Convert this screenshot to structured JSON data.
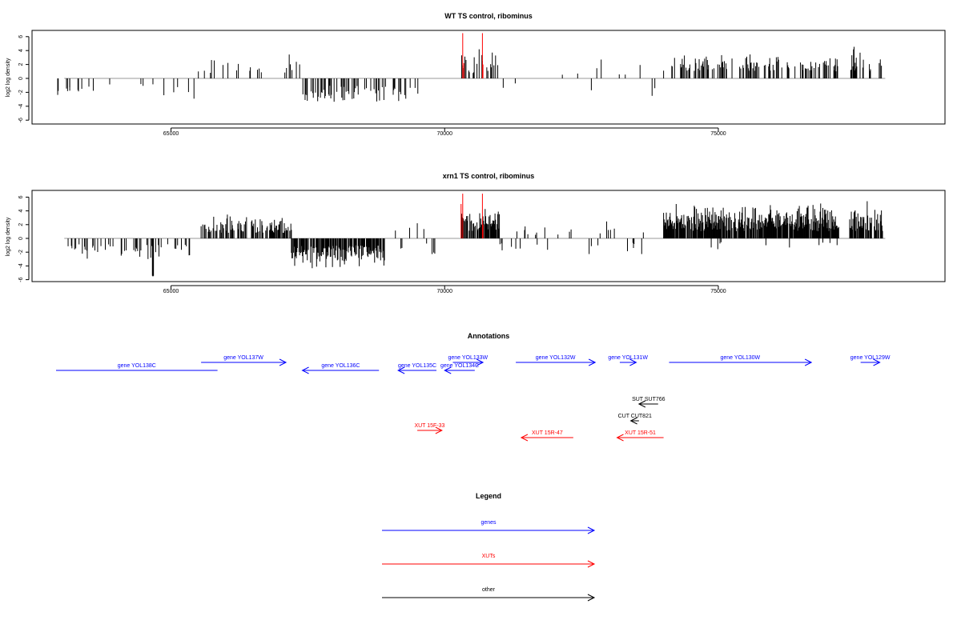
{
  "chart_data": [
    {
      "type": "bar",
      "title": "WT TS control, ribominus",
      "ylabel": "log2 log density",
      "xlim": [
        62900,
        78600
      ],
      "ylim": [
        -6,
        7
      ],
      "yticks": [
        "6",
        "4",
        "2",
        "0",
        "-2",
        "-4",
        "-6"
      ],
      "xticks": [
        "65000",
        "70000",
        "75000"
      ],
      "grid": false,
      "series": [
        {
          "color": "#000000",
          "segments": [
            {
              "from": 62900,
              "to": 63150,
              "side": "neg",
              "min": 1.2,
              "max": 3.0,
              "density": 0.12
            },
            {
              "from": 63150,
              "to": 65500,
              "side": "neg",
              "min": 0.8,
              "max": 3.2,
              "density": 0.06
            },
            {
              "from": 65500,
              "to": 67400,
              "side": "pos",
              "min": 0.8,
              "max": 3.5,
              "density": 0.12
            },
            {
              "from": 67400,
              "to": 69300,
              "side": "neg",
              "min": 1.0,
              "max": 4.2,
              "density": 0.35
            },
            {
              "from": 69300,
              "to": 69550,
              "side": "neg",
              "min": 1.0,
              "max": 2.5,
              "density": 0.06
            },
            {
              "from": 70300,
              "to": 71000,
              "side": "pos",
              "min": 0.5,
              "max": 4.5,
              "density": 0.3
            },
            {
              "from": 71000,
              "to": 74150,
              "side": "mixed",
              "min": 0.5,
              "max": 3.0,
              "density": 0.04
            },
            {
              "from": 74150,
              "to": 77200,
              "side": "pos",
              "min": 1.0,
              "max": 3.8,
              "density": 0.35
            },
            {
              "from": 76200,
              "to": 77600,
              "side": "neg",
              "min": 1.0,
              "max": 2.5,
              "density": 0.01
            },
            {
              "from": 77400,
              "to": 78000,
              "side": "pos",
              "min": 1.0,
              "max": 5.2,
              "density": 0.45
            }
          ]
        },
        {
          "color": "#ff0000",
          "name": "",
          "bars": [
            [
              70330,
              6.5
            ],
            [
              70690,
              6.5
            ],
            [
              70350,
              2.2
            ],
            [
              70700,
              2.0
            ]
          ]
        }
      ]
    },
    {
      "type": "bar",
      "title": "xrn1 TS control, ribominus",
      "ylabel": "log2 log density",
      "xlim": [
        62900,
        78600
      ],
      "ylim": [
        -6,
        7
      ],
      "yticks": [
        "6",
        "4",
        "2",
        "0",
        "-2",
        "-4",
        "-6"
      ],
      "xticks": [
        "65000",
        "70000",
        "75000"
      ],
      "grid": false,
      "series": [
        {
          "color": "#000000",
          "segments": [
            {
              "from": 63050,
              "to": 65350,
              "side": "neg",
              "min": 0.8,
              "max": 3.2,
              "density": 0.22
            },
            {
              "from": 64650,
              "to": 64720,
              "side": "neg",
              "min": 5.4,
              "max": 5.6,
              "density": 0.5
            },
            {
              "from": 65550,
              "to": 67200,
              "side": "pos",
              "min": 0.8,
              "max": 3.8,
              "density": 0.6
            },
            {
              "from": 67200,
              "to": 68900,
              "side": "neg",
              "min": 1.0,
              "max": 5.0,
              "density": 0.8
            },
            {
              "from": 69000,
              "to": 70200,
              "side": "mixed",
              "min": 0.5,
              "max": 3.0,
              "density": 0.08
            },
            {
              "from": 70300,
              "to": 71000,
              "side": "pos",
              "min": 1.0,
              "max": 5.0,
              "density": 0.8
            },
            {
              "from": 71000,
              "to": 73900,
              "side": "mixed",
              "min": 0.5,
              "max": 3.0,
              "density": 0.12
            },
            {
              "from": 74000,
              "to": 77200,
              "side": "pos",
              "min": 1.0,
              "max": 5.5,
              "density": 0.9
            },
            {
              "from": 74800,
              "to": 77300,
              "side": "neg",
              "min": 0.5,
              "max": 2.0,
              "density": 0.03
            },
            {
              "from": 77400,
              "to": 78000,
              "side": "pos",
              "min": 1.0,
              "max": 6.5,
              "density": 0.8
            }
          ]
        },
        {
          "color": "#ff0000",
          "name": "",
          "bars": [
            [
              70330,
              6.5
            ],
            [
              70690,
              6.5
            ],
            [
              70300,
              5.0
            ],
            [
              70700,
              2.0
            ]
          ]
        }
      ]
    }
  ],
  "annotations": {
    "title": "Annotations",
    "genes": [
      {
        "label": "gene YOL138C",
        "from": 62900,
        "to": 65850,
        "row": 1,
        "dir": "none"
      },
      {
        "label": "gene YOL137W",
        "from": 65550,
        "to": 67100,
        "row": 0,
        "dir": "right"
      },
      {
        "label": "gene YOL136C",
        "from": 67400,
        "to": 68800,
        "row": 1,
        "dir": "left"
      },
      {
        "label": "gene YOL135C",
        "from": 69150,
        "to": 69850,
        "row": 1,
        "dir": "left"
      },
      {
        "label": "gene YOL134C",
        "from": 70000,
        "to": 70550,
        "row": 1,
        "dir": "left"
      },
      {
        "label": "gene YOL133W",
        "from": 70150,
        "to": 70700,
        "row": 0,
        "dir": "right"
      },
      {
        "label": "gene YOL132W",
        "from": 71300,
        "to": 72750,
        "row": 0,
        "dir": "right"
      },
      {
        "label": "gene YOL131W",
        "from": 73200,
        "to": 73500,
        "row": 0,
        "dir": "right"
      },
      {
        "label": "gene YOL130W",
        "from": 74100,
        "to": 76700,
        "row": 0,
        "dir": "right"
      },
      {
        "label": "gene YOL129W",
        "from": 77600,
        "to": 77950,
        "row": 0,
        "dir": "right"
      }
    ],
    "others": [
      {
        "label": "SUT SUT766",
        "from": 73550,
        "to": 73900,
        "row": 3,
        "dir": "left"
      },
      {
        "label": "CUT CUT821",
        "from": 73400,
        "to": 73550,
        "row": 4,
        "dir": "left"
      }
    ],
    "xuts": [
      {
        "label": "XUT 15F-33",
        "from": 69500,
        "to": 69950,
        "row": 5,
        "dir": "right"
      },
      {
        "label": "XUT 15R-47",
        "from": 71400,
        "to": 72350,
        "row": 6,
        "dir": "left"
      },
      {
        "label": "XUT 15R-51",
        "from": 73150,
        "to": 74000,
        "row": 6,
        "dir": "left"
      }
    ]
  },
  "legend": {
    "title": "Legend",
    "items": [
      {
        "label": "genes",
        "color": "#0000ff"
      },
      {
        "label": "XUTs",
        "color": "#ff0000"
      },
      {
        "label": "other",
        "color": "#000000"
      }
    ]
  },
  "colors": {
    "genes": "#0000ff",
    "xuts": "#ff0000",
    "other": "#000000",
    "baseline": "#999999"
  }
}
